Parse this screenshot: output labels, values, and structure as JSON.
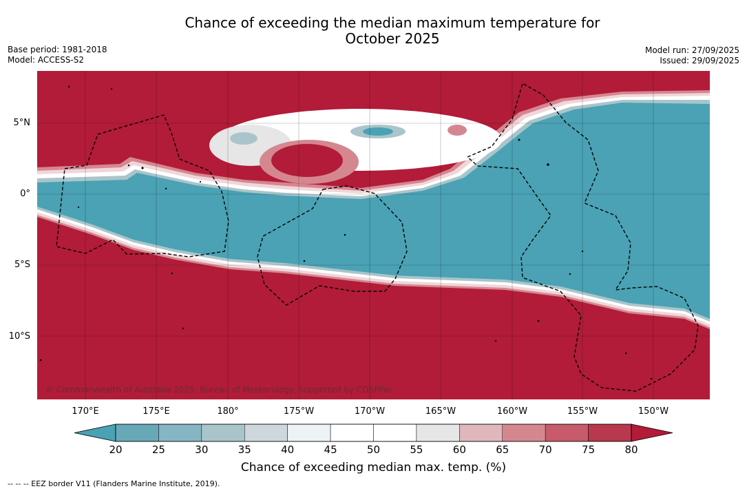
{
  "title_line1": "Chance of exceeding the median maximum temperature for",
  "title_line2": "October 2025",
  "base_period": "Base period: 1981-2018",
  "model": "Model: ACCESS-S2",
  "model_run": "Model run: 27/09/2025",
  "issued": "Issued: 29/09/2025",
  "copyright": "© Commonwealth of Australia 2025, Bureau of Meteorology, supported by COSPPac",
  "lat_labels": [
    "5°N",
    "0°",
    "5°S",
    "10°S"
  ],
  "lon_labels": [
    "170°E",
    "175°E",
    "180°",
    "175°W",
    "170°W",
    "165°W",
    "160°W",
    "155°W",
    "150°W"
  ],
  "colorbar": {
    "ticks": [
      "20",
      "25",
      "30",
      "35",
      "40",
      "45",
      "50",
      "55",
      "60",
      "65",
      "70",
      "75",
      "80"
    ],
    "colors": [
      "#4aa2b4",
      "#67a9b7",
      "#86b6c3",
      "#a9c5cb",
      "#ced8dc",
      "#edf2f4",
      "#ffffff",
      "#ffffff",
      "#e6e6e6",
      "#dfb7bd",
      "#d58790",
      "#c75b6b",
      "#b8394d",
      "#b21c38"
    ],
    "label": "Chance of exceeding median max. temp. (%)"
  },
  "footer": "--  --  -- EEZ border V11 (Flanders Marine Institute, 2019).",
  "colors": {
    "high": "#b21c38",
    "low": "#4aa2b4"
  }
}
